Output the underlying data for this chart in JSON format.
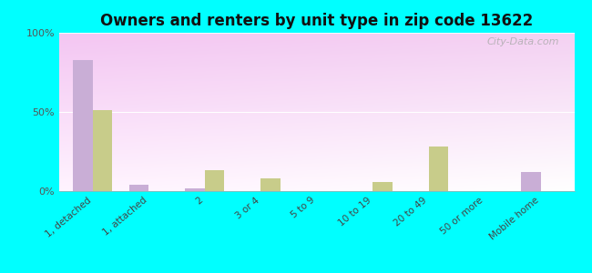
{
  "title": "Owners and renters by unit type in zip code 13622",
  "categories": [
    "1, detached",
    "1, attached",
    "2",
    "3 or 4",
    "5 to 9",
    "10 to 19",
    "20 to 49",
    "50 or more",
    "Mobile home"
  ],
  "owner_values": [
    83,
    4,
    2,
    0,
    0,
    0,
    0,
    0,
    12
  ],
  "renter_values": [
    51,
    0,
    13,
    8,
    0,
    6,
    28,
    0,
    0
  ],
  "owner_color": "#c9aed6",
  "renter_color": "#c8cc8a",
  "background_color": "#00ffff",
  "plot_bg_color_top_left": "#d6e8c0",
  "plot_bg_color_top_right": "#e8f0d8",
  "plot_bg_color_bottom": "#f0f8e8",
  "ylim": [
    0,
    100
  ],
  "yticks": [
    0,
    50,
    100
  ],
  "ytick_labels": [
    "0%",
    "50%",
    "100%"
  ],
  "bar_width": 0.35,
  "watermark": "City-Data.com"
}
